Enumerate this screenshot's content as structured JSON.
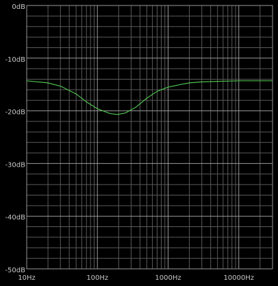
{
  "chart_data": {
    "type": "line",
    "x_scale": "log",
    "grid": true,
    "x": [
      10,
      20,
      30,
      50,
      70,
      100,
      150,
      190,
      250,
      350,
      500,
      700,
      1000,
      1500,
      2000,
      3000,
      5000,
      10000,
      30000
    ],
    "series": [
      {
        "color": "#4fc04f",
        "values": [
          -14.3,
          -14.7,
          -15.3,
          -16.8,
          -18.3,
          -19.6,
          -20.5,
          -20.7,
          -20.4,
          -19.3,
          -17.6,
          -16.3,
          -15.5,
          -15.0,
          -14.7,
          -14.5,
          -14.4,
          -14.3,
          -14.3
        ]
      }
    ],
    "xlim": [
      10,
      30000
    ],
    "xticks": [
      {
        "value": 10,
        "label": "10Hz"
      },
      {
        "value": 100,
        "label": "100Hz"
      },
      {
        "value": 1000,
        "label": "1000Hz"
      },
      {
        "value": 10000,
        "label": "10000Hz"
      }
    ],
    "ylim": [
      -50,
      0
    ],
    "yticks": [
      {
        "value": 0,
        "label": "0dB"
      },
      {
        "value": -10,
        "label": "-10dB"
      },
      {
        "value": -20,
        "label": "-20dB"
      },
      {
        "value": -30,
        "label": "-30dB"
      },
      {
        "value": -40,
        "label": "-40dB"
      },
      {
        "value": -50,
        "label": "-50dB"
      }
    ]
  }
}
